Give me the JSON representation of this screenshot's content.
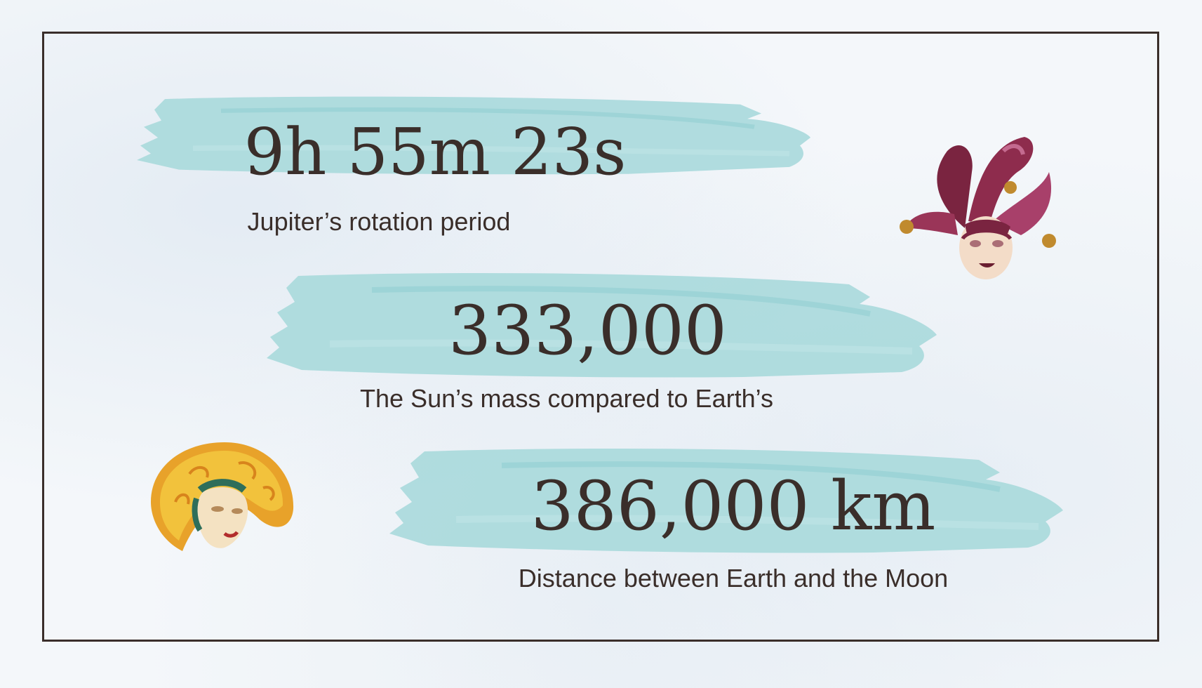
{
  "stats": [
    {
      "value": "9h 55m 23s",
      "caption": "Jupiter’s rotation period"
    },
    {
      "value": "333,000",
      "caption": "The Sun’s mass compared to Earth’s"
    },
    {
      "value": "386,000 km",
      "caption": "Distance between Earth and the Moon"
    }
  ],
  "colors": {
    "text": "#3a2e2a",
    "brush": "#a8d9dc",
    "frame": "#3a2e2a"
  },
  "decorations": {
    "jester_mask": "jester-mask-icon",
    "sun_mask": "sun-mask-icon"
  }
}
